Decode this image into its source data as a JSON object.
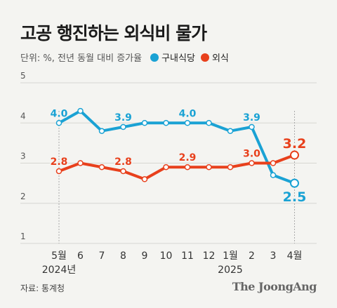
{
  "header": {
    "title": "고공 행진하는 외식비 물가",
    "unit_note": "단위: %, 전년 동월 대비 증가율"
  },
  "colors": {
    "series_1": "#1aa2d4",
    "series_2": "#e8401c",
    "grid": "#d6d6d2",
    "axis_text": "#333333"
  },
  "chart_data": {
    "type": "line",
    "categories": [
      "5월",
      "6",
      "7",
      "8",
      "9",
      "10",
      "11",
      "12",
      "1월",
      "2",
      "3",
      "4월"
    ],
    "year_labels": [
      {
        "index": 0,
        "text": "2024년"
      },
      {
        "index": 8,
        "text": "2025"
      }
    ],
    "ylim": [
      1,
      5
    ],
    "yticks": [
      1,
      2,
      3,
      4,
      5
    ],
    "grid": true,
    "series": [
      {
        "name": "구내식당",
        "color": "#1aa2d4",
        "values": [
          4.0,
          4.3,
          3.8,
          3.9,
          4.0,
          4.0,
          4.0,
          4.0,
          3.8,
          3.9,
          2.7,
          2.5
        ],
        "labeled": [
          {
            "index": 0,
            "text": "4.0"
          },
          {
            "index": 3,
            "text": "3.9"
          },
          {
            "index": 6,
            "text": "4.0"
          },
          {
            "index": 9,
            "text": "3.9"
          },
          {
            "index": 11,
            "text": "2.5"
          }
        ]
      },
      {
        "name": "외식",
        "color": "#e8401c",
        "values": [
          2.8,
          3.0,
          2.9,
          2.8,
          2.6,
          2.9,
          2.9,
          2.9,
          2.9,
          3.0,
          3.0,
          3.2
        ],
        "labeled": [
          {
            "index": 0,
            "text": "2.8"
          },
          {
            "index": 3,
            "text": "2.8"
          },
          {
            "index": 6,
            "text": "2.9"
          },
          {
            "index": 9,
            "text": "3.0"
          },
          {
            "index": 11,
            "text": "3.2"
          }
        ]
      }
    ]
  },
  "footer": {
    "source": "자료: 통계청",
    "brand": "The JoongAng"
  }
}
